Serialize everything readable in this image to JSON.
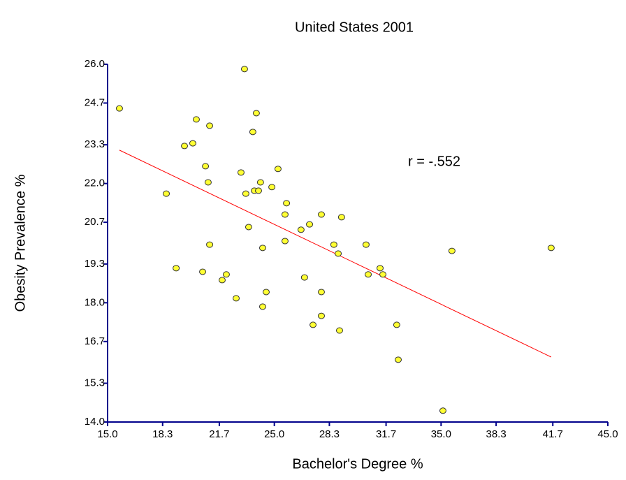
{
  "chart_data": {
    "type": "scatter",
    "title": "United States 2001",
    "xlabel": "Bachelor's Degree %",
    "ylabel": "Obesity Prevalence %",
    "annotation": "r = -.552",
    "color": "#ffff33",
    "x": [
      15.71,
      18.52,
      19.11,
      19.61,
      20.11,
      20.32,
      20.7,
      20.87,
      21.03,
      21.12,
      21.12,
      21.87,
      22.12,
      22.71,
      23.0,
      23.21,
      23.29,
      23.46,
      23.71,
      23.8,
      23.92,
      24.05,
      24.17,
      24.3,
      24.3,
      24.51,
      24.85,
      25.22,
      25.64,
      25.64,
      25.73,
      26.6,
      26.81,
      27.11,
      27.32,
      27.82,
      27.82,
      27.82,
      28.57,
      28.83,
      28.91,
      29.03,
      30.5,
      30.63,
      31.34,
      31.51,
      32.34,
      32.43,
      35.11,
      35.65,
      41.6
    ],
    "y": [
      24.52,
      21.66,
      19.16,
      23.26,
      23.35,
      24.15,
      19.04,
      22.58,
      22.04,
      23.94,
      19.95,
      18.76,
      18.95,
      18.15,
      22.37,
      25.84,
      21.66,
      20.54,
      23.73,
      21.76,
      24.36,
      21.76,
      22.04,
      19.84,
      17.87,
      18.36,
      21.88,
      22.49,
      20.96,
      20.07,
      21.34,
      20.45,
      18.85,
      20.63,
      17.26,
      20.96,
      18.36,
      17.56,
      19.95,
      19.65,
      17.07,
      20.87,
      19.95,
      18.95,
      19.16,
      18.95,
      17.26,
      16.09,
      14.38,
      19.74,
      19.84
    ],
    "trendline": {
      "x": [
        15.71,
        41.6
      ],
      "y": [
        23.12,
        16.18
      ],
      "color": "#ff0000"
    },
    "xlim": [
      15,
      45
    ],
    "xticks": [
      {
        "value": 15,
        "label": "15.0"
      },
      18.3,
      21.7,
      {
        "value": 25,
        "label": "25.0"
      },
      28.3,
      31.7,
      {
        "value": 35,
        "label": "35.0"
      },
      38.3,
      41.7,
      {
        "value": 45,
        "label": "45.0"
      }
    ],
    "ylim": [
      14,
      26
    ],
    "yticks": [
      {
        "value": 26,
        "label": "26.0"
      },
      24.7,
      23.3,
      {
        "value": 22,
        "label": "22.0"
      },
      20.7,
      19.3,
      {
        "value": 18,
        "label": "18.0"
      },
      16.7,
      15.3,
      {
        "value": 14,
        "label": "14.0"
      }
    ]
  }
}
